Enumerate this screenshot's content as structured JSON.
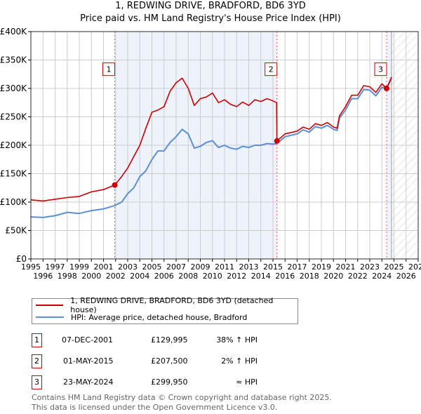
{
  "title": "1, REDWING DRIVE, BRADFORD, BD6 3YD",
  "subtitle": "Price paid vs. HM Land Registry's House Price Index (HPI)",
  "legend": {
    "red": "1, REDWING DRIVE, BRADFORD, BD6 3YD (detached house)",
    "blue": "HPI: Average price, detached house, Bradford"
  },
  "sales": [
    {
      "n": "1",
      "date": "07-DEC-2001",
      "price": "£129,995",
      "hpi": "38% ↑ HPI"
    },
    {
      "n": "2",
      "date": "01-MAY-2015",
      "price": "£207,500",
      "hpi": "2% ↑ HPI"
    },
    {
      "n": "3",
      "date": "23-MAY-2024",
      "price": "£299,950",
      "hpi": "≈ HPI"
    }
  ],
  "footer": [
    "Contains HM Land Registry data © Crown copyright and database right 2025.",
    "This data is licensed under the Open Government Licence v3.0."
  ],
  "chart_data": {
    "type": "line",
    "xlim": [
      1995,
      2027
    ],
    "ylim": [
      0,
      400000
    ],
    "grid": true,
    "xticks": [
      "1995",
      "1996",
      "1997",
      "1998",
      "1999",
      "2000",
      "2001",
      "2002",
      "2003",
      "2004",
      "2005",
      "2006",
      "2007",
      "2008",
      "2009",
      "2010",
      "2011",
      "2012",
      "2013",
      "2014",
      "2015",
      "2016",
      "2017",
      "2018",
      "2019",
      "2020",
      "2021",
      "2022",
      "2023",
      "2024",
      "2025",
      "2026",
      "2027"
    ],
    "yticks": [
      {
        "v": 0,
        "l": "£0"
      },
      {
        "v": 50000,
        "l": "£50K"
      },
      {
        "v": 100000,
        "l": "£100K"
      },
      {
        "v": 150000,
        "l": "£150K"
      },
      {
        "v": 200000,
        "l": "£200K"
      },
      {
        "v": 250000,
        "l": "£250K"
      },
      {
        "v": 300000,
        "l": "£300K"
      },
      {
        "v": 350000,
        "l": "£350K"
      },
      {
        "v": 400000,
        "l": "£400K"
      }
    ],
    "forecast_start": 2024.8,
    "colors": {
      "red": "#cc0000",
      "blue": "#5b8fd4",
      "shade": "#eef2fb"
    },
    "sale_points": [
      {
        "x": 2001.93,
        "y": 129995,
        "label": "1"
      },
      {
        "x": 2015.33,
        "y": 207500,
        "label": "2"
      },
      {
        "x": 2024.39,
        "y": 299950,
        "label": "3"
      }
    ],
    "series": [
      {
        "name": "1, REDWING DRIVE, BRADFORD, BD6 3YD (detached house)",
        "color": "#cc0000",
        "x": [
          1995,
          1996,
          1997,
          1998,
          1999,
          2000,
          2001,
          2001.93,
          2002.5,
          2003,
          2003.5,
          2004,
          2004.5,
          2005,
          2005.5,
          2006,
          2006.5,
          2007,
          2007.5,
          2008,
          2008.5,
          2009,
          2009.5,
          2010,
          2010.5,
          2011,
          2011.5,
          2012,
          2012.5,
          2013,
          2013.5,
          2014,
          2014.5,
          2015,
          2015.3,
          2015.33,
          2016,
          2017,
          2017.5,
          2018,
          2018.5,
          2019,
          2019.5,
          2020,
          2020.3,
          2020.5,
          2021,
          2021.5,
          2022,
          2022.5,
          2023,
          2023.5,
          2024,
          2024.39,
          2024.7,
          2024.8
        ],
        "y": [
          104000,
          102000,
          105000,
          108000,
          110000,
          118000,
          122000,
          129995,
          145000,
          160000,
          180000,
          200000,
          230000,
          258000,
          262000,
          268000,
          295000,
          310000,
          318000,
          300000,
          270000,
          282000,
          285000,
          292000,
          275000,
          280000,
          272000,
          268000,
          276000,
          270000,
          280000,
          277000,
          282000,
          278000,
          275000,
          207500,
          220000,
          225000,
          232000,
          228000,
          238000,
          235000,
          240000,
          232000,
          230000,
          252000,
          268000,
          288000,
          288000,
          305000,
          303000,
          293000,
          308000,
          299950,
          315000,
          320000
        ]
      },
      {
        "name": "HPI: Average price, detached house, Bradford",
        "color": "#5b8fd4",
        "x": [
          1995,
          1996,
          1997,
          1998,
          1999,
          2000,
          2001,
          2001.93,
          2002.5,
          2003,
          2003.5,
          2004,
          2004.5,
          2005,
          2005.5,
          2006,
          2006.5,
          2007,
          2007.5,
          2008,
          2008.5,
          2009,
          2009.5,
          2010,
          2010.5,
          2011,
          2011.5,
          2012,
          2012.5,
          2013,
          2013.5,
          2014,
          2014.5,
          2015,
          2015.33,
          2016,
          2017,
          2017.5,
          2018,
          2018.5,
          2019,
          2019.5,
          2020,
          2020.3,
          2020.5,
          2021,
          2021.5,
          2022,
          2022.5,
          2023,
          2023.5,
          2024,
          2024.39,
          2024.7,
          2024.8
        ],
        "y": [
          74000,
          73000,
          76000,
          82000,
          80000,
          85000,
          88000,
          94000,
          100000,
          115000,
          125000,
          145000,
          155000,
          175000,
          190000,
          190000,
          205000,
          215000,
          228000,
          220000,
          195000,
          198000,
          205000,
          208000,
          196000,
          200000,
          195000,
          193000,
          198000,
          196000,
          200000,
          200000,
          203000,
          202000,
          203000,
          215000,
          220000,
          227000,
          223000,
          233000,
          230000,
          235000,
          228000,
          226000,
          248000,
          262000,
          282000,
          282000,
          298000,
          297000,
          287000,
          302000,
          299950,
          313000,
          318000
        ]
      }
    ]
  }
}
